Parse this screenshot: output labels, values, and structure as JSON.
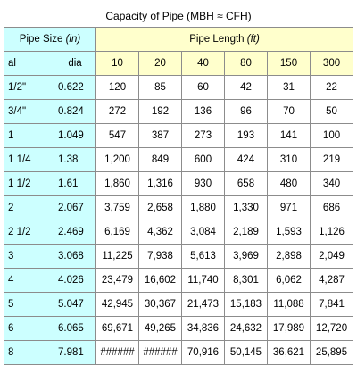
{
  "table": {
    "title": "Capacity of Pipe (MBH ≈ CFH)",
    "pipe_size_header": "Pipe Size",
    "pipe_size_unit": "(in)",
    "pipe_length_header": "Pipe Length",
    "pipe_length_unit": "(ft)",
    "subheader_al": "al",
    "subheader_dia": "dia",
    "lengths": [
      "10",
      "20",
      "40",
      "80",
      "150",
      "300"
    ],
    "rows": [
      {
        "size": "1/2\"",
        "dia": "0.622",
        "values": [
          "120",
          "85",
          "60",
          "42",
          "31",
          "22"
        ]
      },
      {
        "size": "3/4\"",
        "dia": "0.824",
        "values": [
          "272",
          "192",
          "136",
          "96",
          "70",
          "50"
        ]
      },
      {
        "size": "1",
        "dia": "1.049",
        "values": [
          "547",
          "387",
          "273",
          "193",
          "141",
          "100"
        ]
      },
      {
        "size": "1 1/4",
        "dia": "1.38",
        "values": [
          "1,200",
          "849",
          "600",
          "424",
          "310",
          "219"
        ]
      },
      {
        "size": "1 1/2",
        "dia": "1.61",
        "values": [
          "1,860",
          "1,316",
          "930",
          "658",
          "480",
          "340"
        ]
      },
      {
        "size": "2",
        "dia": "2.067",
        "values": [
          "3,759",
          "2,658",
          "1,880",
          "1,330",
          "971",
          "686"
        ]
      },
      {
        "size": "2 1/2",
        "dia": "2.469",
        "values": [
          "6,169",
          "4,362",
          "3,084",
          "2,189",
          "1,593",
          "1,126"
        ]
      },
      {
        "size": "3",
        "dia": "3.068",
        "values": [
          "11,225",
          "7,938",
          "5,613",
          "3,969",
          "2,898",
          "2,049"
        ]
      },
      {
        "size": "4",
        "dia": "4.026",
        "values": [
          "23,479",
          "16,602",
          "11,740",
          "8,301",
          "6,062",
          "4,287"
        ]
      },
      {
        "size": "5",
        "dia": "5.047",
        "values": [
          "42,945",
          "30,367",
          "21,473",
          "15,183",
          "11,088",
          "7,841"
        ]
      },
      {
        "size": "6",
        "dia": "6.065",
        "values": [
          "69,671",
          "49,265",
          "34,836",
          "24,632",
          "17,989",
          "12,720"
        ]
      },
      {
        "size": "8",
        "dia": "7.981",
        "values": [
          "######",
          "######",
          "70,916",
          "50,145",
          "36,621",
          "25,895"
        ]
      }
    ]
  },
  "colors": {
    "size_columns_bg": "#ccffff",
    "length_columns_bg": "#ffffcc",
    "grid_line": "#8c8c8c"
  }
}
